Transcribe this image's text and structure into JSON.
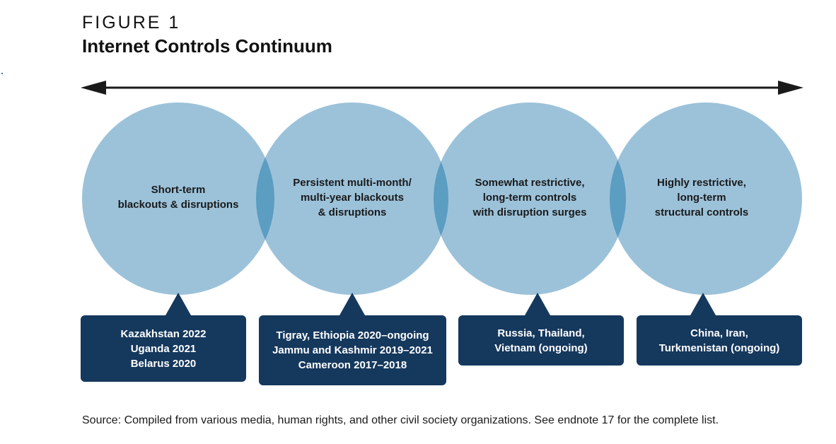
{
  "figure": {
    "label": "FIGURE 1",
    "title": "Internet Controls Continuum"
  },
  "colors": {
    "circle": "#9cc2da",
    "overlap": "#5c9dc2",
    "box": "#15385d",
    "arrow": "#1a1a1a"
  },
  "stages": [
    {
      "lines": [
        "Short-term",
        "blackouts & disruptions"
      ],
      "examples": [
        "Kazakhstan 2022",
        "Uganda 2021",
        "Belarus 2020"
      ]
    },
    {
      "lines": [
        "Persistent multi-month/",
        "multi-year blackouts",
        "& disruptions"
      ],
      "examples": [
        "Tigray, Ethiopia 2020–ongoing",
        "Jammu and Kashmir 2019–2021",
        "Cameroon 2017–2018"
      ]
    },
    {
      "lines": [
        "Somewhat restrictive,",
        "long-term controls",
        "with disruption surges"
      ],
      "examples": [
        "Russia, Thailand,",
        "Vietnam (ongoing)"
      ]
    },
    {
      "lines": [
        "Highly restrictive,",
        "long-term",
        "structural controls"
      ],
      "examples": [
        "China, Iran,",
        "Turkmenistan (ongoing)"
      ]
    }
  ],
  "source": "Source: Compiled from various media, human rights, and other civil society organizations. See endnote 17 for the complete list."
}
